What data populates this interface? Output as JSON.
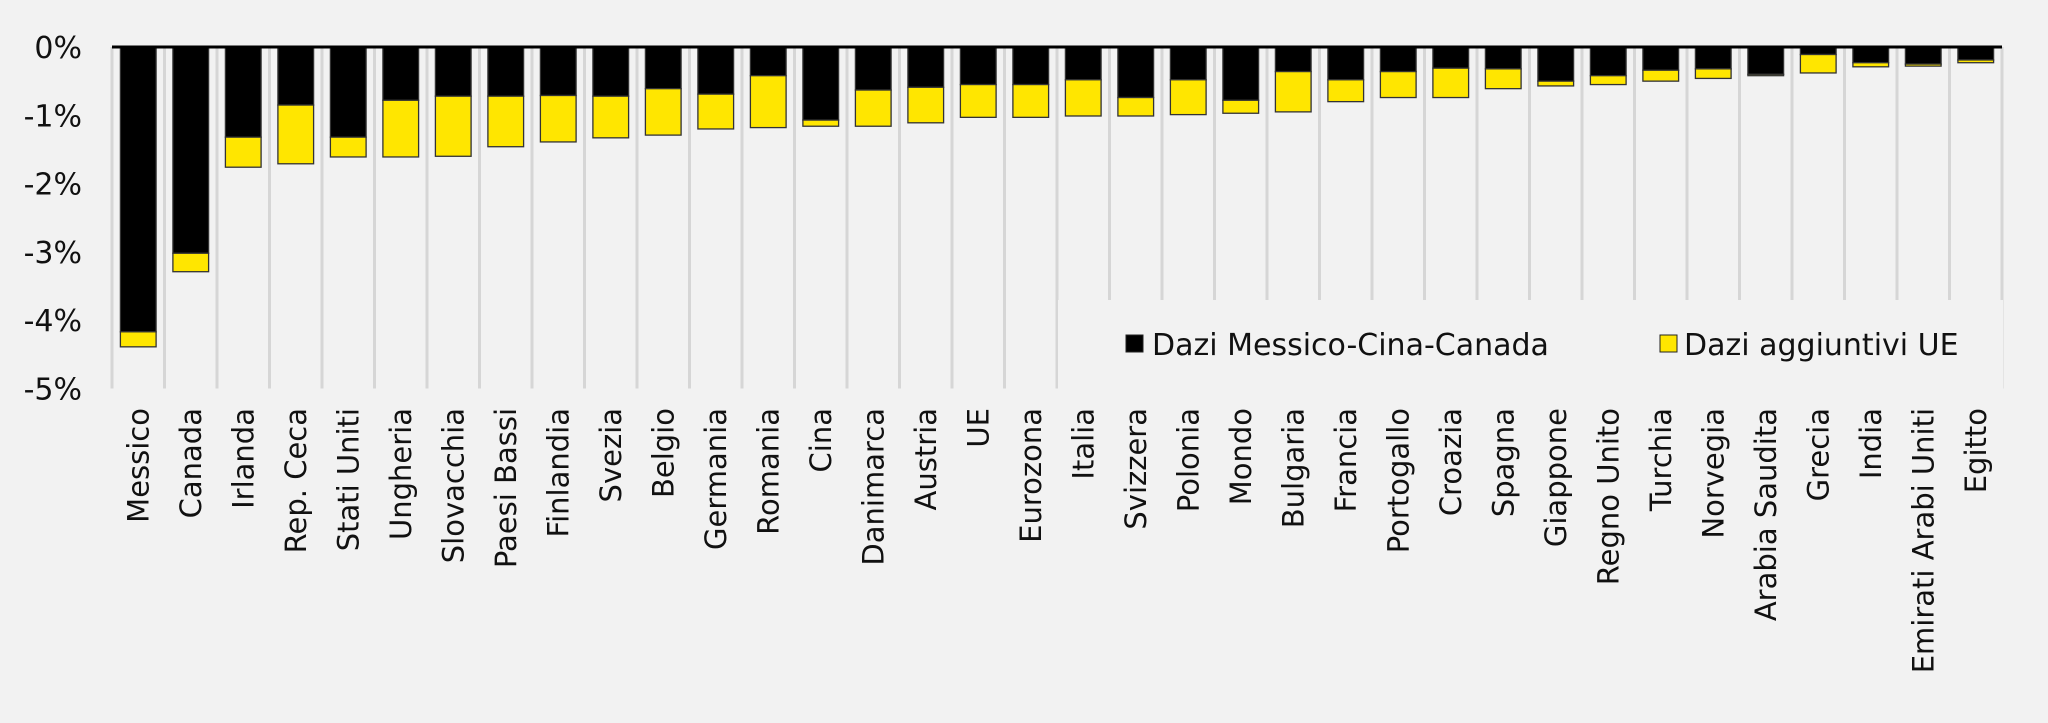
{
  "chart_data": {
    "type": "bar",
    "stacked": true,
    "title": "",
    "xlabel": "",
    "ylabel": "",
    "ylim": [
      -5,
      0
    ],
    "yticks": [
      0,
      -1,
      -2,
      -3,
      -4,
      -5
    ],
    "ytick_labels": [
      "0%",
      "-1%",
      "-2%",
      "-3%",
      "-4%",
      "-5%"
    ],
    "legend_position": "bottom-right",
    "categories": [
      "Messico",
      "Canada",
      "Irlanda",
      "Rep. Ceca",
      "Stati Uniti",
      "Ungheria",
      "Slovacchia",
      "Paesi Bassi",
      "Finlandia",
      "Svezia",
      "Belgio",
      "Germania",
      "Romania",
      "Cina",
      "Danimarca",
      "Austria",
      "UE",
      "Eurozona",
      "Italia",
      "Svizzera",
      "Polonia",
      "Mondo",
      "Bulgaria",
      "Francia",
      "Portogallo",
      "Croazia",
      "Spagna",
      "Giappone",
      "Regno Unito",
      "Turchia",
      "Norvegia",
      "Arabia Saudita",
      "Grecia",
      "India",
      "Emirati Arabi Uniti",
      "Egitto"
    ],
    "series": [
      {
        "name": "Dazi Messico-Cina-Canada",
        "color": "#000000",
        "values": [
          -4.17,
          -3.02,
          -1.32,
          -0.85,
          -1.32,
          -0.78,
          -0.72,
          -0.72,
          -0.71,
          -0.72,
          -0.61,
          -0.69,
          -0.42,
          -1.07,
          -0.63,
          -0.59,
          -0.55,
          -0.55,
          -0.48,
          -0.74,
          -0.48,
          -0.78,
          -0.36,
          -0.48,
          -0.36,
          -0.31,
          -0.32,
          -0.5,
          -0.42,
          -0.34,
          -0.32,
          -0.4,
          -0.11,
          -0.23,
          -0.25,
          -0.19
        ]
      },
      {
        "name": "Dazi aggiuntivi UE",
        "color": "#ffe600",
        "values": [
          -0.22,
          -0.27,
          -0.44,
          -0.86,
          -0.29,
          -0.83,
          -0.88,
          -0.74,
          -0.68,
          -0.61,
          -0.68,
          -0.51,
          -0.76,
          -0.09,
          -0.53,
          -0.52,
          -0.48,
          -0.48,
          -0.53,
          -0.27,
          -0.51,
          -0.19,
          -0.59,
          -0.32,
          -0.38,
          -0.43,
          -0.29,
          -0.07,
          -0.13,
          -0.16,
          -0.14,
          -0.02,
          -0.27,
          -0.06,
          -0.03,
          -0.04
        ]
      }
    ]
  }
}
